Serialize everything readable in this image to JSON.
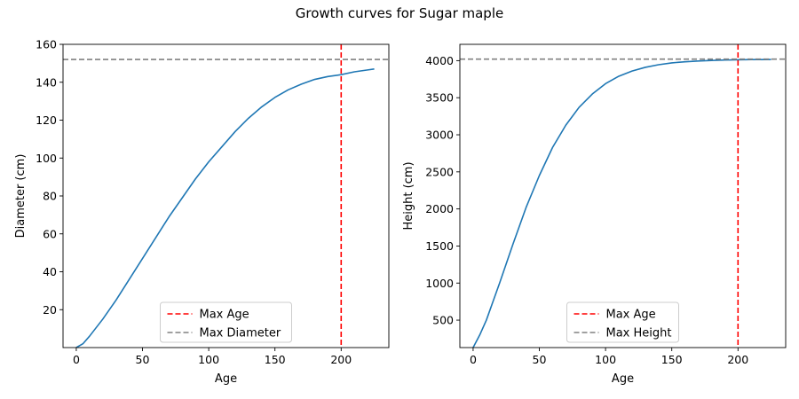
{
  "figure": {
    "title": "Growth curves for Sugar maple"
  },
  "chart_data": [
    {
      "type": "line",
      "xlabel": "Age",
      "ylabel": "Diameter (cm)",
      "xlim": [
        -10,
        236
      ],
      "ylim": [
        0,
        160
      ],
      "xticks": [
        0,
        50,
        100,
        150,
        200
      ],
      "yticks": [
        20,
        40,
        60,
        80,
        100,
        120,
        140,
        160
      ],
      "grid": false,
      "legend_position": "lower center",
      "series": [
        {
          "color": "#1f77b4",
          "x": [
            0,
            5,
            10,
            20,
            30,
            40,
            50,
            60,
            70,
            80,
            90,
            100,
            110,
            120,
            130,
            140,
            150,
            160,
            170,
            180,
            190,
            200,
            210,
            220,
            225
          ],
          "y": [
            0,
            2,
            6,
            15,
            25,
            36,
            47,
            58,
            69,
            79,
            89,
            98,
            106,
            114,
            121,
            127,
            132,
            136,
            139,
            141.5,
            143,
            144,
            145.5,
            146.5,
            147
          ]
        }
      ],
      "reference_lines": [
        {
          "orientation": "vertical",
          "value": 200,
          "color": "#ff0000",
          "style": "dashed",
          "label": "Max Age"
        },
        {
          "orientation": "horizontal",
          "value": 152,
          "color": "#808080",
          "style": "dashed",
          "label": "Max Diameter"
        }
      ]
    },
    {
      "type": "line",
      "xlabel": "Age",
      "ylabel": "Height (cm)",
      "xlim": [
        -10,
        236
      ],
      "ylim": [
        130,
        4220
      ],
      "xticks": [
        0,
        50,
        100,
        150,
        200
      ],
      "yticks": [
        500,
        1000,
        1500,
        2000,
        2500,
        3000,
        3500,
        4000
      ],
      "grid": false,
      "legend_position": "lower center",
      "series": [
        {
          "color": "#1f77b4",
          "x": [
            0,
            5,
            10,
            15,
            20,
            30,
            40,
            50,
            60,
            70,
            80,
            90,
            100,
            110,
            120,
            130,
            140,
            150,
            160,
            170,
            180,
            190,
            200,
            210,
            220,
            225
          ],
          "y": [
            130,
            300,
            500,
            750,
            1000,
            1520,
            2020,
            2450,
            2830,
            3130,
            3370,
            3550,
            3690,
            3790,
            3860,
            3910,
            3945,
            3970,
            3985,
            3995,
            4003,
            4008,
            4012,
            4014,
            4015,
            4016
          ]
        }
      ],
      "reference_lines": [
        {
          "orientation": "vertical",
          "value": 200,
          "color": "#ff0000",
          "style": "dashed",
          "label": "Max Age"
        },
        {
          "orientation": "horizontal",
          "value": 4020,
          "color": "#808080",
          "style": "dashed",
          "label": "Max Height"
        }
      ]
    }
  ]
}
